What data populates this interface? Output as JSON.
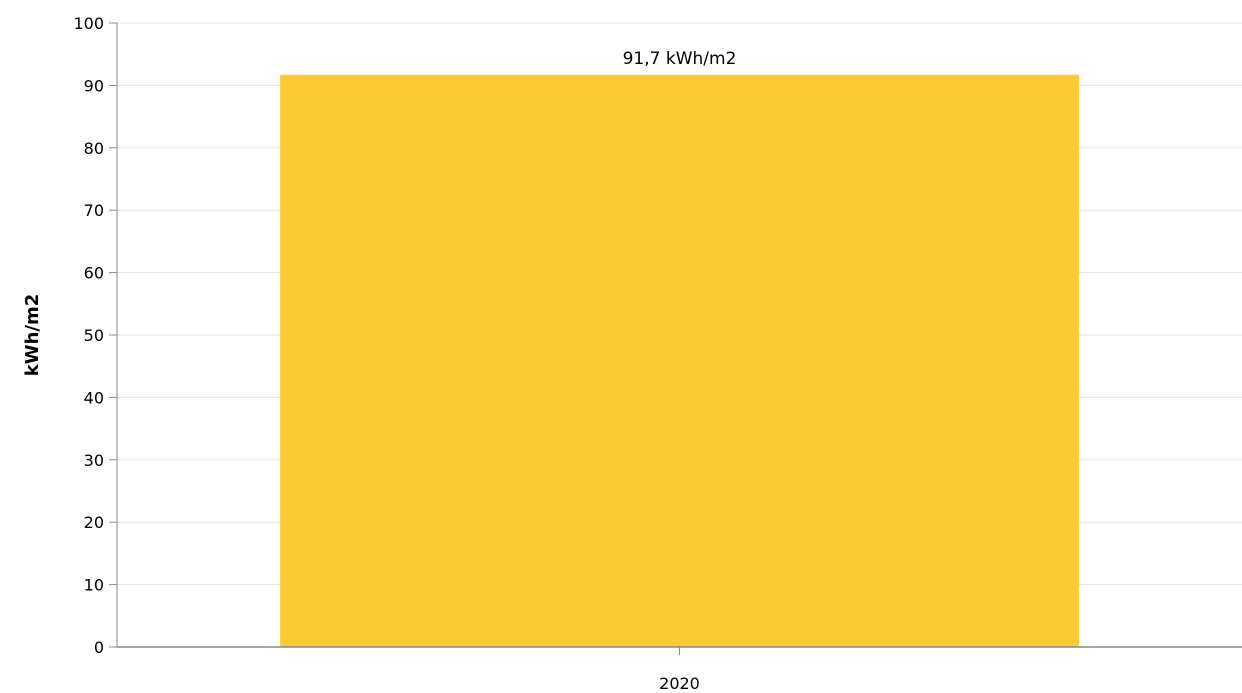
{
  "chart_data": {
    "type": "bar",
    "title": "",
    "xlabel": "",
    "ylabel": "kWh/m2",
    "categories": [
      "2020"
    ],
    "values": [
      91.7
    ],
    "data_labels": [
      "91,7 kWh/m2"
    ],
    "ylim": [
      0,
      100
    ],
    "yticks": [
      0,
      10,
      20,
      30,
      40,
      50,
      60,
      70,
      80,
      90,
      100
    ],
    "ytick_labels": [
      "0",
      "10",
      "20",
      "30",
      "40",
      "50",
      "60",
      "70",
      "80",
      "90",
      "100"
    ],
    "grid": true,
    "legend": "none",
    "colors": {
      "bar": "#fcca33",
      "grid": "#e2e2e2",
      "axis": "#888888",
      "text": "#000000"
    }
  }
}
